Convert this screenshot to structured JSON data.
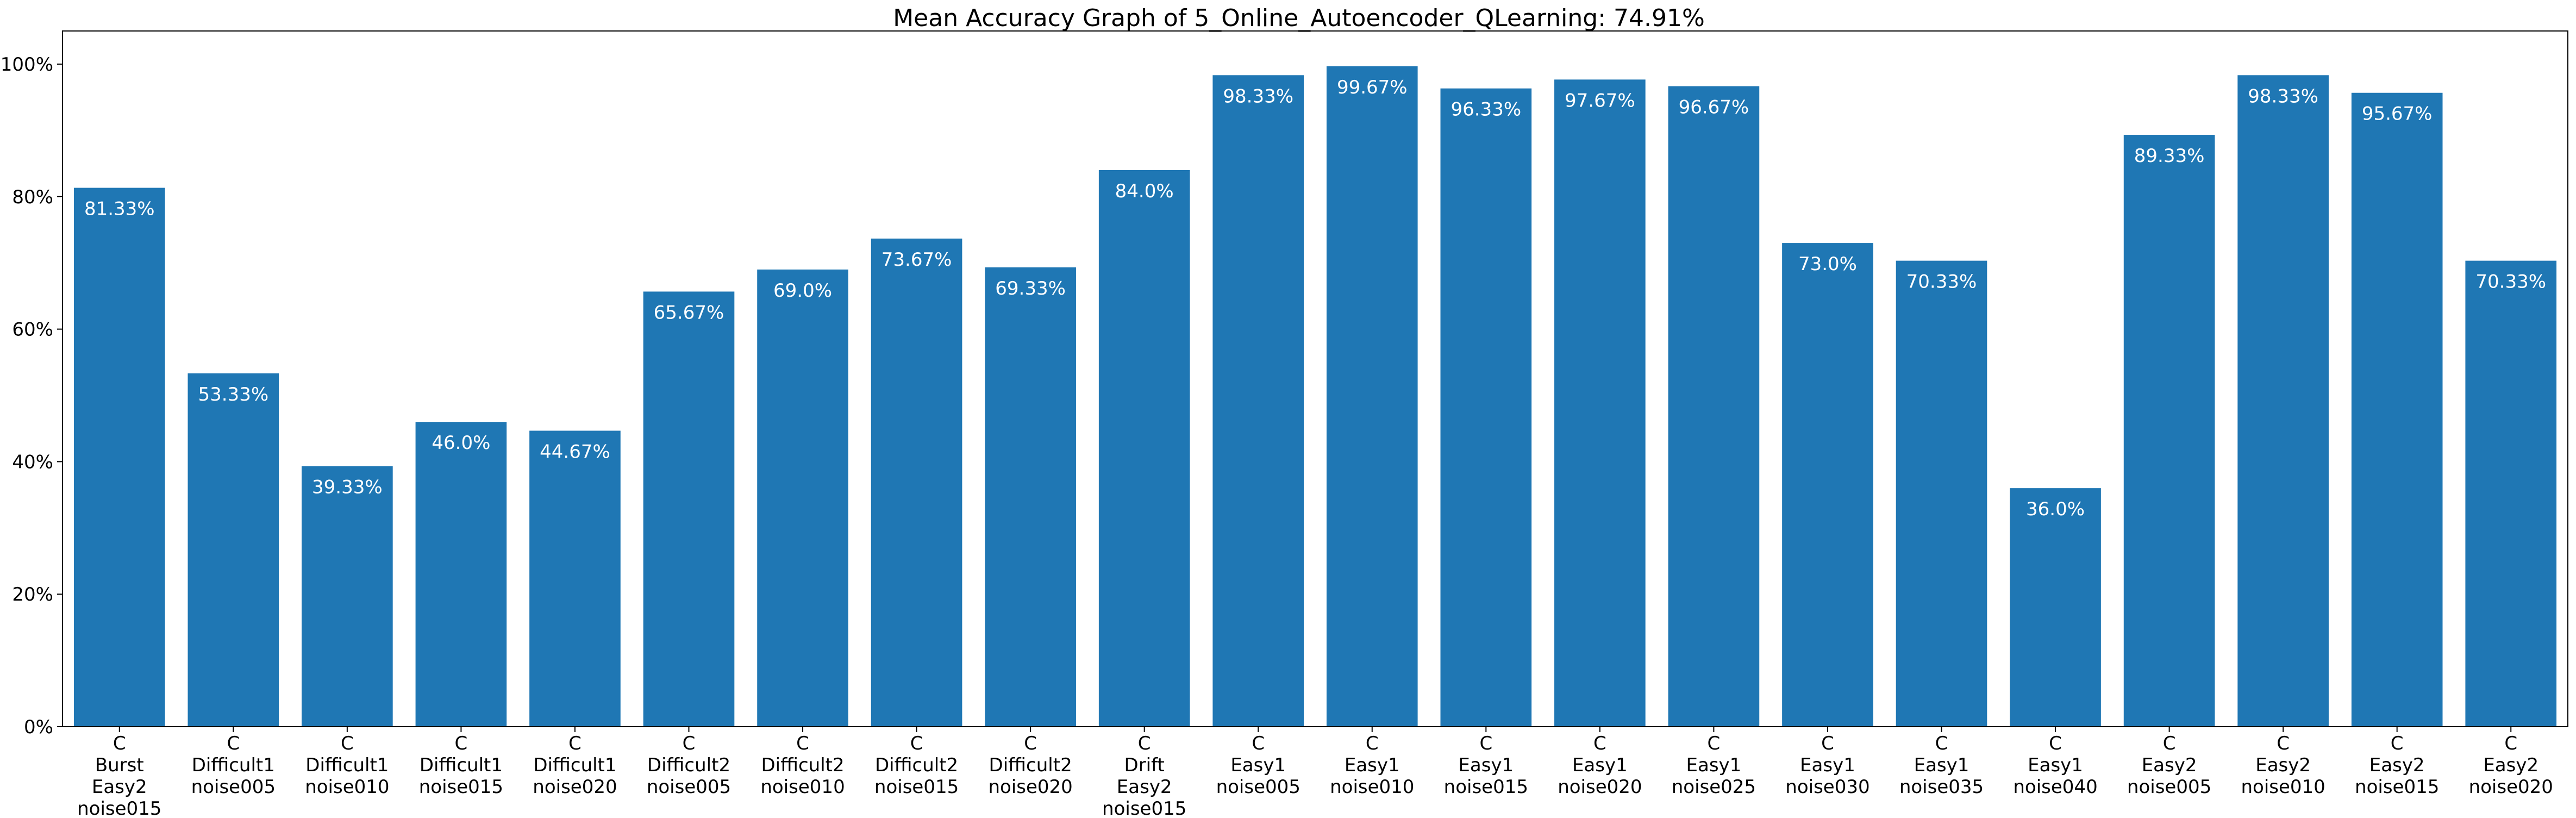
{
  "chart_data": {
    "type": "bar",
    "title": "Mean Accuracy Graph of 5_Online_Autoencoder_QLearning: 74.91%",
    "xlabel": "",
    "ylabel": "",
    "ylim": [
      0,
      105
    ],
    "yticks": [
      0,
      20,
      40,
      60,
      80,
      100
    ],
    "ytick_labels": [
      "0%",
      "20%",
      "40%",
      "60%",
      "80%",
      "100%"
    ],
    "grid": false,
    "bar_color": "#1f77b4",
    "label_color": "#ffffff",
    "categories": [
      [
        "C",
        "Burst",
        "Easy2",
        "noise015"
      ],
      [
        "C",
        "Difficult1",
        "noise005"
      ],
      [
        "C",
        "Difficult1",
        "noise010"
      ],
      [
        "C",
        "Difficult1",
        "noise015"
      ],
      [
        "C",
        "Difficult1",
        "noise020"
      ],
      [
        "C",
        "Difficult2",
        "noise005"
      ],
      [
        "C",
        "Difficult2",
        "noise010"
      ],
      [
        "C",
        "Difficult2",
        "noise015"
      ],
      [
        "C",
        "Difficult2",
        "noise020"
      ],
      [
        "C",
        "Drift",
        "Easy2",
        "noise015"
      ],
      [
        "C",
        "Easy1",
        "noise005"
      ],
      [
        "C",
        "Easy1",
        "noise010"
      ],
      [
        "C",
        "Easy1",
        "noise015"
      ],
      [
        "C",
        "Easy1",
        "noise020"
      ],
      [
        "C",
        "Easy1",
        "noise025"
      ],
      [
        "C",
        "Easy1",
        "noise030"
      ],
      [
        "C",
        "Easy1",
        "noise035"
      ],
      [
        "C",
        "Easy1",
        "noise040"
      ],
      [
        "C",
        "Easy2",
        "noise005"
      ],
      [
        "C",
        "Easy2",
        "noise010"
      ],
      [
        "C",
        "Easy2",
        "noise015"
      ],
      [
        "C",
        "Easy2",
        "noise020"
      ]
    ],
    "values": [
      81.33,
      53.33,
      39.33,
      46.0,
      44.67,
      65.67,
      69.0,
      73.67,
      69.33,
      84.0,
      98.33,
      99.67,
      96.33,
      97.67,
      96.67,
      73.0,
      70.33,
      36.0,
      89.33,
      98.33,
      95.67,
      70.33
    ],
    "value_labels": [
      "81.33%",
      "53.33%",
      "39.33%",
      "46.0%",
      "44.67%",
      "65.67%",
      "69.0%",
      "73.67%",
      "69.33%",
      "84.0%",
      "98.33%",
      "99.67%",
      "96.33%",
      "97.67%",
      "96.67%",
      "73.0%",
      "70.33%",
      "36.0%",
      "89.33%",
      "98.33%",
      "95.67%",
      "70.33%"
    ]
  }
}
